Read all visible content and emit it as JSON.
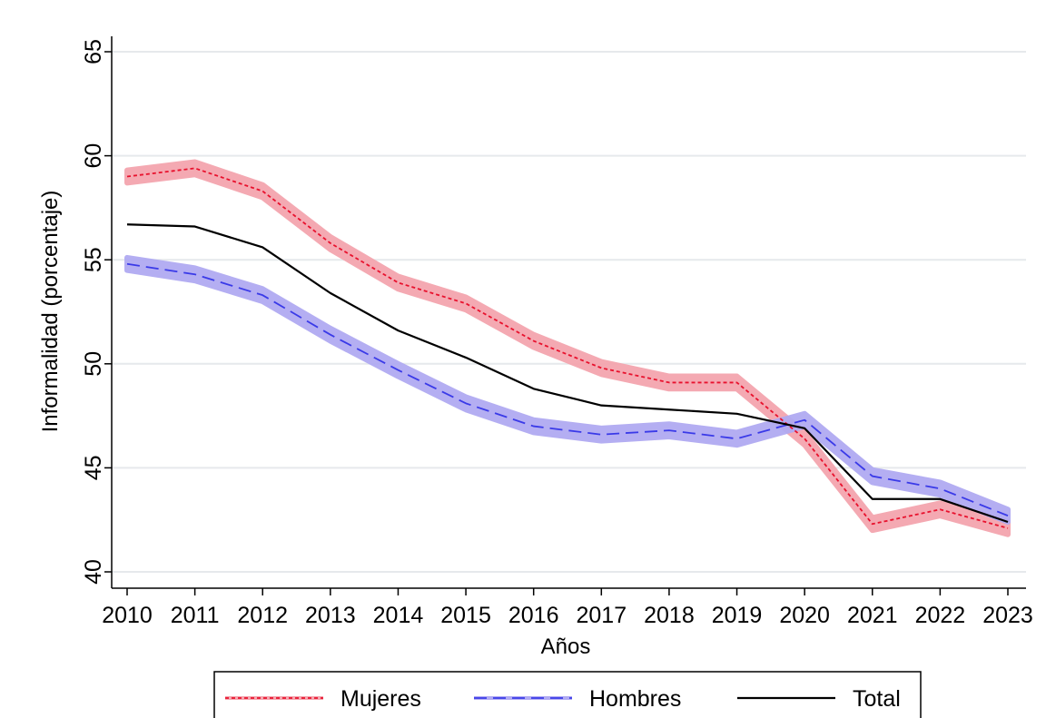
{
  "chart_data": {
    "type": "line",
    "title": "",
    "xlabel": "Años",
    "ylabel": "Informalidad (porcentaje)",
    "x": [
      2010,
      2011,
      2012,
      2013,
      2014,
      2015,
      2016,
      2017,
      2018,
      2019,
      2020,
      2021,
      2022,
      2023
    ],
    "xlim": [
      2010,
      2023
    ],
    "ylim": [
      40,
      65
    ],
    "yticks": [
      40,
      45,
      50,
      55,
      60,
      65
    ],
    "grid": true,
    "legend_position": "bottom",
    "series": [
      {
        "name": "Mujeres",
        "color": "#e8112d",
        "band_color": "#f4a5ae",
        "style": "dotted",
        "values": [
          59.0,
          59.4,
          58.3,
          55.8,
          53.9,
          52.9,
          51.1,
          49.8,
          49.1,
          49.1,
          46.4,
          42.3,
          43.0,
          42.1
        ],
        "ci_halfwidth": 0.3
      },
      {
        "name": "Hombres",
        "color": "#3a3ae8",
        "band_color": "#b0aaf2",
        "style": "dashed",
        "values": [
          54.8,
          54.3,
          53.3,
          51.4,
          49.7,
          48.1,
          47.0,
          46.6,
          46.8,
          46.4,
          47.3,
          44.6,
          44.0,
          42.7
        ],
        "ci_halfwidth": 0.3
      },
      {
        "name": "Total",
        "color": "#000000",
        "style": "solid",
        "values": [
          56.7,
          56.6,
          55.6,
          53.4,
          51.6,
          50.3,
          48.8,
          48.0,
          47.8,
          47.6,
          46.9,
          43.5,
          43.5,
          42.4
        ]
      }
    ]
  }
}
